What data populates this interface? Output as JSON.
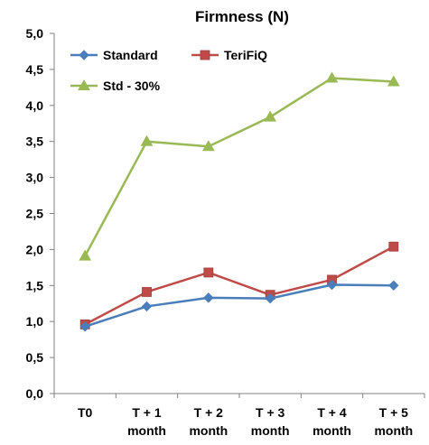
{
  "chart_data": {
    "type": "line",
    "title": "Firmness (N)",
    "xlabel": "",
    "ylabel": "",
    "categories": [
      [
        "T0"
      ],
      [
        "T + 1",
        "month"
      ],
      [
        "T + 2",
        "month"
      ],
      [
        "T + 3",
        "month"
      ],
      [
        "T + 4",
        "month"
      ],
      [
        "T + 5",
        "month"
      ]
    ],
    "ylim": [
      0,
      5
    ],
    "yticks": [
      "0,0",
      "0,5",
      "1,0",
      "1,5",
      "2,0",
      "2,5",
      "3,0",
      "3,5",
      "4,0",
      "4,5",
      "5,0"
    ],
    "grid": false,
    "legend_position": "top-left",
    "series": [
      {
        "name": "Standard",
        "values": [
          0.93,
          1.21,
          1.33,
          1.32,
          1.51,
          1.5
        ],
        "color": "#4a7ebb",
        "marker": "diamond"
      },
      {
        "name": "TeriFiQ",
        "values": [
          0.96,
          1.41,
          1.68,
          1.37,
          1.58,
          2.04
        ],
        "color": "#be4b48",
        "marker": "square"
      },
      {
        "name": "Std - 30%",
        "values": [
          1.91,
          3.5,
          3.43,
          3.84,
          4.38,
          4.33
        ],
        "color": "#98b954",
        "marker": "triangle"
      }
    ]
  }
}
